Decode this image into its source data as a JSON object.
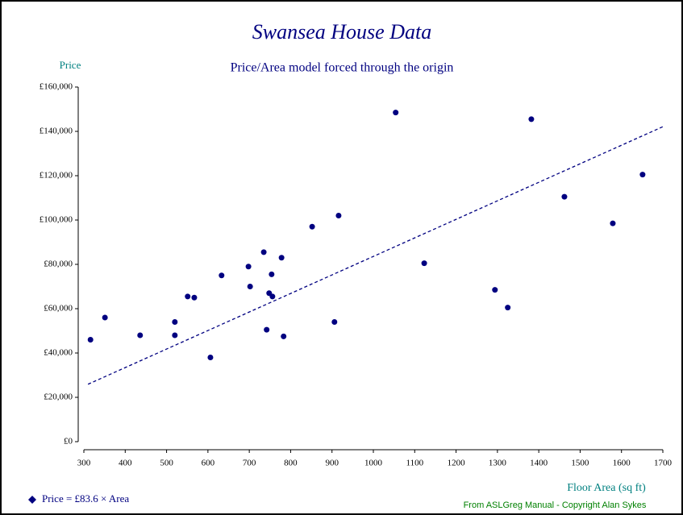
{
  "chart_data": {
    "type": "scatter",
    "title": "Swansea House Data",
    "subtitle": "Price/Area model forced through the origin",
    "y_label": "Price",
    "x_label": "Floor Area (sq ft)",
    "credit": "From ASLGreg Manual - Copyright Alan Sykes",
    "series": [
      {
        "name": "Price = £83.6 × Area",
        "color": "#000080",
        "x": [
          316,
          351,
          436,
          520,
          520,
          551,
          567,
          606,
          633,
          698,
          702,
          735,
          742,
          748,
          754,
          756,
          778,
          783,
          852,
          906,
          916,
          1054,
          1123,
          1294,
          1325,
          1382,
          1462,
          1579,
          1651
        ],
        "values": [
          46000,
          56000,
          48000,
          54000,
          48000,
          65500,
          65000,
          38000,
          75000,
          79000,
          70000,
          85500,
          50500,
          67000,
          75500,
          65500,
          83000,
          47500,
          97000,
          54000,
          102000,
          148500,
          80500,
          68500,
          60500,
          145500,
          110500,
          98500,
          120500
        ]
      }
    ],
    "fit_line": {
      "color": "#000080",
      "x": [
        310,
        1700
      ],
      "values": [
        25900,
        142100
      ]
    },
    "xlim": [
      300,
      1700
    ],
    "xticks": [
      300,
      400,
      500,
      600,
      700,
      800,
      900,
      1000,
      1100,
      1200,
      1300,
      1400,
      1500,
      1600,
      1700
    ],
    "ylim": [
      0,
      160000
    ],
    "yticks": [
      {
        "value": 0,
        "label": "£0"
      },
      {
        "value": 20000,
        "label": "£20,000"
      },
      {
        "value": 40000,
        "label": "£40,000"
      },
      {
        "value": 60000,
        "label": "£60,000"
      },
      {
        "value": 80000,
        "label": "£80,000"
      },
      {
        "value": 100000,
        "label": "£100,000"
      },
      {
        "value": 120000,
        "label": "£120,000"
      },
      {
        "value": 140000,
        "label": "£140,000"
      },
      {
        "value": 160000,
        "label": "£160,000"
      }
    ]
  }
}
